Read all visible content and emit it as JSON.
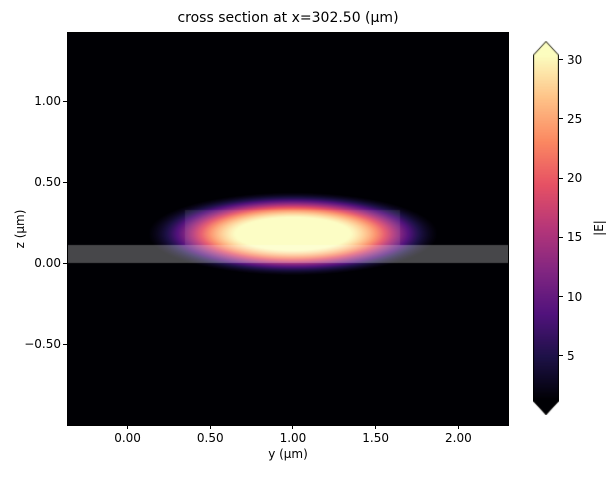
{
  "figure": {
    "background_color": "#ffffff"
  },
  "chart_data": {
    "type": "heatmap",
    "title": "cross section at x=302.50 (μm)",
    "xlabel": "y (μm)",
    "ylabel": "z (μm)",
    "x_range": [
      -0.36,
      2.3
    ],
    "z_range": [
      -1.0,
      1.42
    ],
    "x_ticks": [
      {
        "value": 0.0,
        "label": "0.00"
      },
      {
        "value": 0.5,
        "label": "0.50"
      },
      {
        "value": 1.0,
        "label": "1.00"
      },
      {
        "value": 1.5,
        "label": "1.50"
      },
      {
        "value": 2.0,
        "label": "2.00"
      }
    ],
    "z_ticks": [
      {
        "value": 1.0,
        "label": "1.00"
      },
      {
        "value": 0.5,
        "label": "0.50"
      },
      {
        "value": 0.0,
        "label": "0.00"
      },
      {
        "value": -0.5,
        "label": "−0.50"
      }
    ],
    "colorbar": {
      "label": "|E|",
      "vmin": 1.2,
      "vmax": 30.4,
      "extend": "both",
      "colormap": "magma",
      "ticks": [
        {
          "value": 5,
          "label": "5"
        },
        {
          "value": 10,
          "label": "10"
        },
        {
          "value": 15,
          "label": "15"
        },
        {
          "value": 20,
          "label": "20"
        },
        {
          "value": 25,
          "label": "25"
        },
        {
          "value": 30,
          "label": "30"
        }
      ],
      "colormap_stops": [
        [
          0.0,
          "#000004"
        ],
        [
          0.125,
          "#1d1147"
        ],
        [
          0.25,
          "#51127c"
        ],
        [
          0.375,
          "#822681"
        ],
        [
          0.5,
          "#b63679"
        ],
        [
          0.625,
          "#e65164"
        ],
        [
          0.75,
          "#fb8861"
        ],
        [
          0.875,
          "#fec287"
        ],
        [
          1.0,
          "#fcfdbf"
        ]
      ]
    },
    "field": {
      "peak": 33,
      "center": {
        "y": 1.0,
        "z": 0.18
      },
      "width": {
        "y": 0.65,
        "z": 0.19
      },
      "shape_exponent": 2
    },
    "structure": {
      "slab": {
        "y_min": -0.36,
        "y_max": 2.3,
        "z_min": 0.0,
        "z_max": 0.11,
        "overlay_alpha": 0.28
      },
      "ridge": {
        "y_min": 0.35,
        "y_max": 1.65,
        "z_min": 0.11,
        "z_max": 0.33,
        "overlay_alpha": 0.09
      }
    }
  }
}
